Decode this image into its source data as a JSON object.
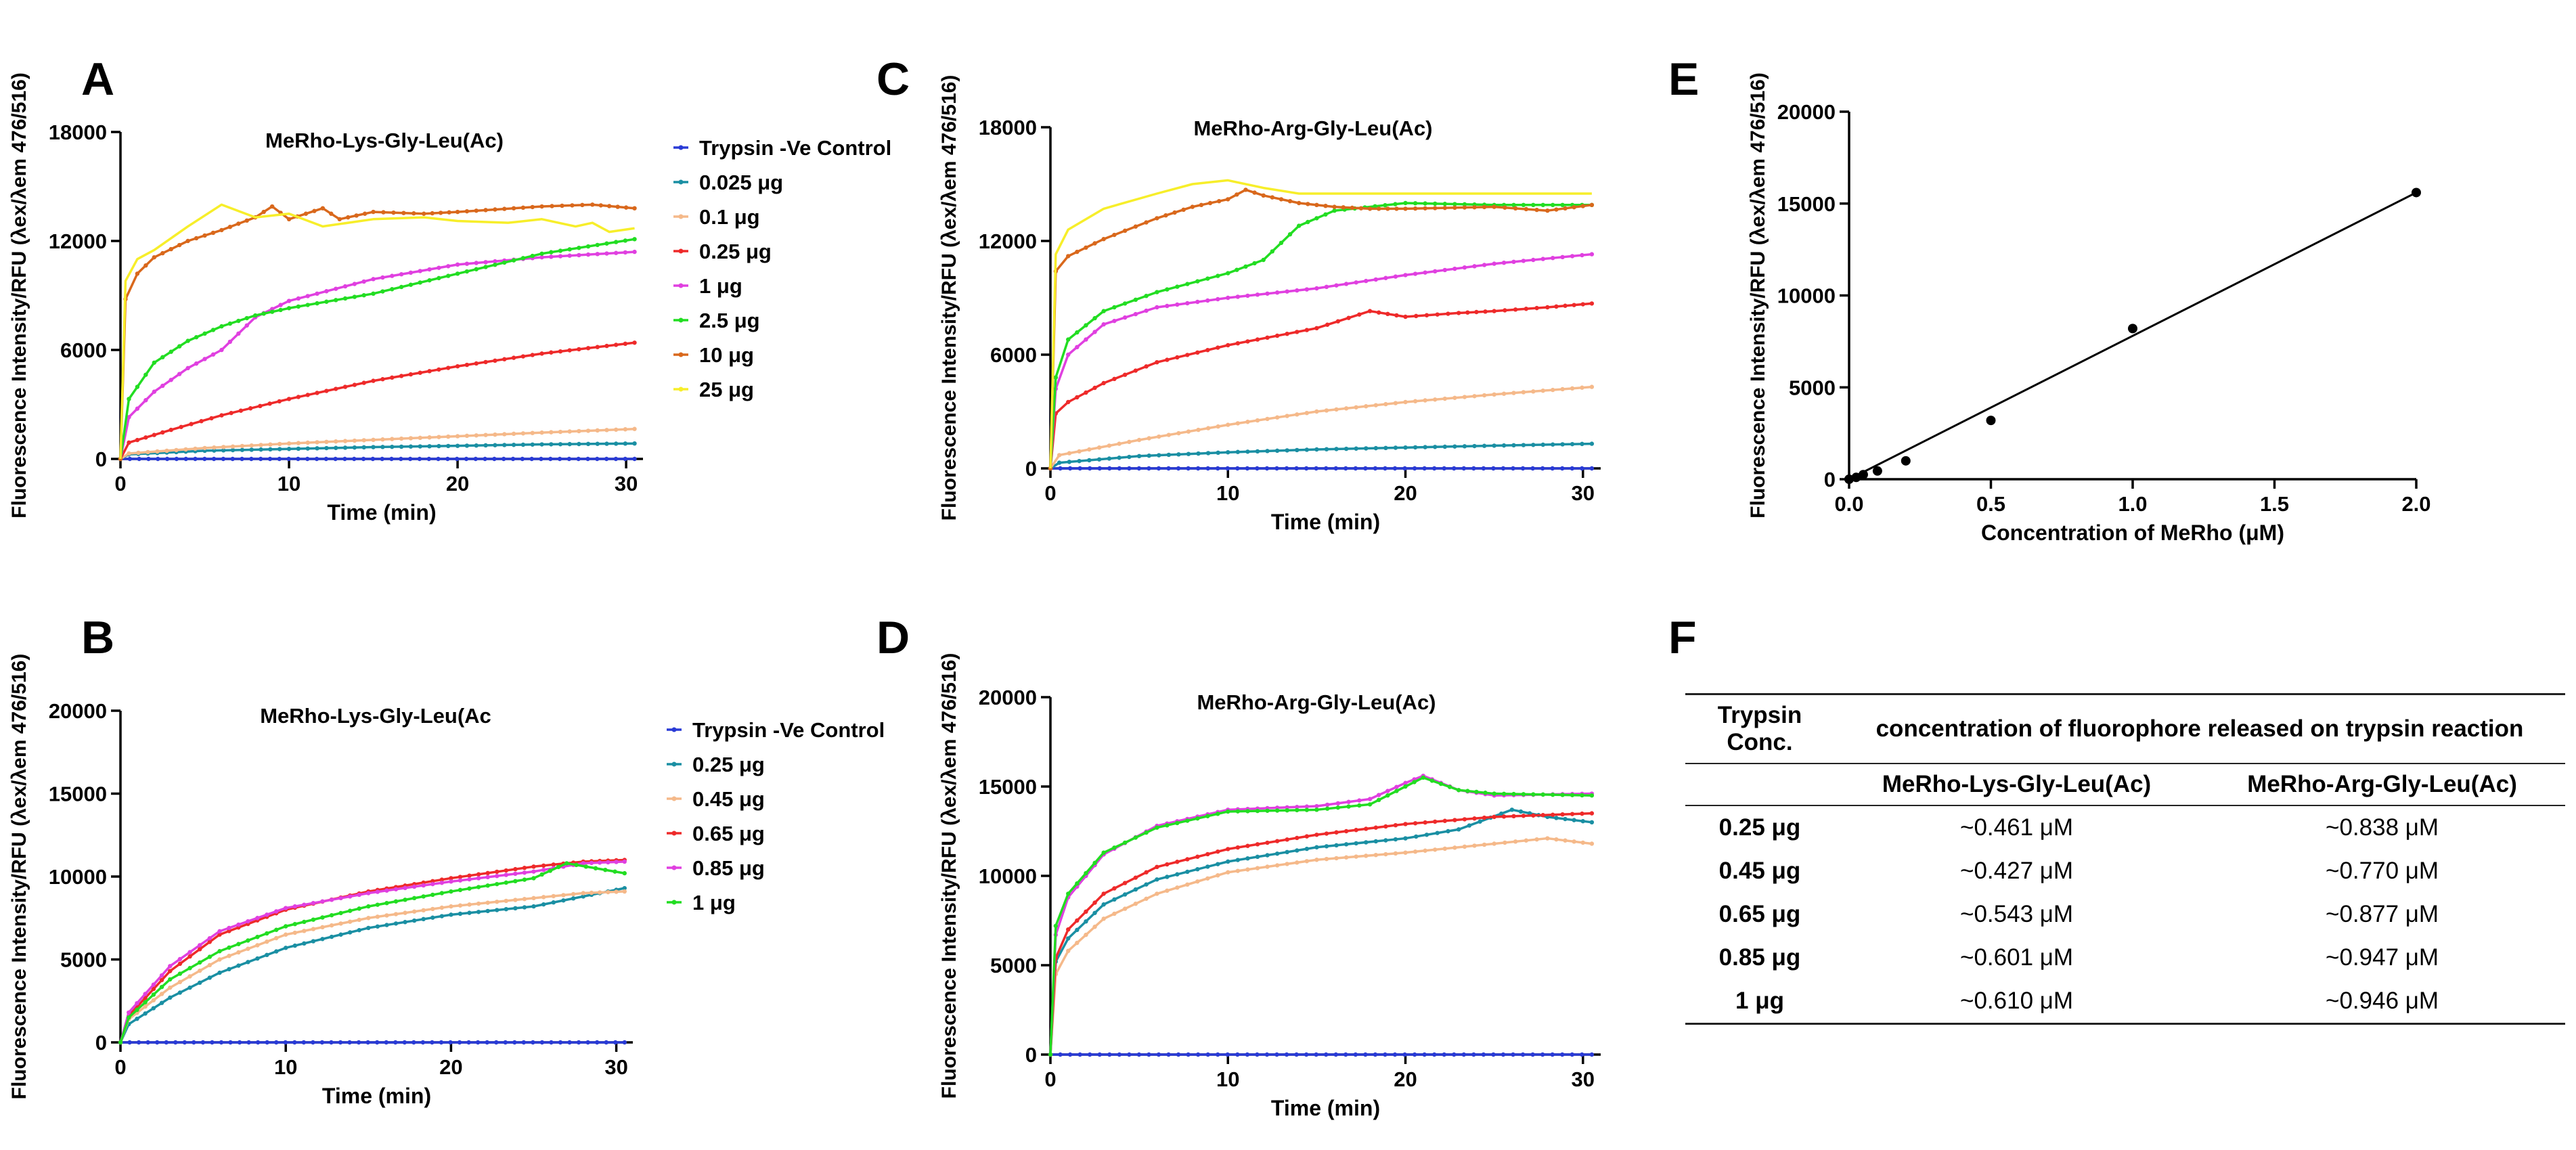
{
  "chart_data": [
    {
      "panel": "A",
      "type": "line",
      "title": "MeRho-Lys-Gly-Leu(Ac)",
      "xlabel": "Time (min)",
      "ylabel": "Fluorescence Intensity/RFU (λex/λem 476/516)",
      "xlim": [
        0,
        31
      ],
      "ylim": [
        0,
        18000
      ],
      "xticks": [
        0,
        10,
        20,
        30
      ],
      "xtick_labels": [
        "0",
        "10",
        "20",
        "30"
      ],
      "yticks": [
        0,
        6000,
        12000,
        18000
      ],
      "ytick_labels": [
        "0",
        "6000",
        "12000",
        "18000"
      ],
      "series": [
        {
          "name": "Trypsin -Ve Control",
          "color": "#2a3bd6",
          "marker": true,
          "x": [
            0,
            30.5
          ],
          "y": [
            0,
            0
          ]
        },
        {
          "name": "0.025  μg",
          "color": "#1a8fa3",
          "marker": true,
          "x": [
            0,
            0.5,
            5,
            10,
            15,
            20,
            25,
            30.5
          ],
          "y": [
            0,
            250,
            450,
            550,
            650,
            720,
            800,
            850
          ]
        },
        {
          "name": "0.1 μg",
          "color": "#f5b98a",
          "marker": true,
          "x": [
            0,
            0.5,
            5,
            10,
            15,
            20,
            25,
            30.5
          ],
          "y": [
            0,
            300,
            600,
            850,
            1050,
            1250,
            1450,
            1650
          ]
        },
        {
          "name": "0.25 μg",
          "color": "#ee2a2a",
          "marker": true,
          "x": [
            0,
            0.5,
            3,
            6,
            10,
            15,
            20,
            25,
            30.5
          ],
          "y": [
            0,
            900,
            1600,
            2400,
            3300,
            4300,
            5100,
            5800,
            6400
          ]
        },
        {
          "name": "1 μg",
          "color": "#e040e0",
          "marker": true,
          "x": [
            0,
            0.5,
            2,
            4,
            6,
            8,
            10,
            15,
            20,
            25,
            30.5
          ],
          "y": [
            0,
            2300,
            3700,
            5000,
            6000,
            7800,
            8700,
            9900,
            10700,
            11100,
            11400
          ]
        },
        {
          "name": "2.5 μg",
          "color": "#22dd22",
          "marker": true,
          "x": [
            0,
            0.5,
            2,
            4,
            6,
            8,
            10,
            15,
            20,
            25,
            30.5
          ],
          "y": [
            0,
            3300,
            5300,
            6500,
            7300,
            7900,
            8300,
            9100,
            10200,
            11300,
            12100
          ]
        },
        {
          "name": "10 μg",
          "color": "#d9681c",
          "marker": true,
          "x": [
            0,
            0.3,
            1,
            2,
            4,
            6,
            8,
            9,
            10,
            12,
            13,
            15,
            18,
            20,
            25,
            28,
            30.5
          ],
          "y": [
            0,
            8800,
            10200,
            11100,
            12000,
            12600,
            13300,
            13900,
            13200,
            13800,
            13200,
            13600,
            13500,
            13600,
            13900,
            14000,
            13800
          ]
        },
        {
          "name": "25 μg",
          "color": "#f7ee2a",
          "marker": false,
          "x": [
            0,
            0.3,
            1,
            2,
            4,
            6,
            8,
            10,
            12,
            15,
            18,
            20,
            23,
            25,
            27,
            28,
            29,
            30.5
          ],
          "y": [
            0,
            9800,
            11000,
            11500,
            12800,
            14000,
            13300,
            13500,
            12800,
            13200,
            13300,
            13100,
            13000,
            13200,
            12800,
            13000,
            12500,
            12700
          ]
        }
      ]
    },
    {
      "panel": "B",
      "type": "line",
      "title": "MeRho-Lys-Gly-Leu(Ac",
      "xlabel": "Time (min)",
      "ylabel": "Fluorescence Intensity/RFU (λex/λem 476/516)",
      "xlim": [
        0,
        31
      ],
      "ylim": [
        0,
        20000
      ],
      "xticks": [
        0,
        10,
        20,
        30
      ],
      "xtick_labels": [
        "0",
        "10",
        "20",
        "30"
      ],
      "yticks": [
        0,
        5000,
        10000,
        15000,
        20000
      ],
      "ytick_labels": [
        "0",
        "5000",
        "10000",
        "15000",
        "20000"
      ],
      "series": [
        {
          "name": "Trypsin -Ve Control",
          "color": "#2a3bd6",
          "marker": true,
          "x": [
            0,
            30.5
          ],
          "y": [
            0,
            0
          ]
        },
        {
          "name": "0.25  μg",
          "color": "#1a8fa3",
          "marker": true,
          "x": [
            0,
            0.5,
            3,
            6,
            10,
            15,
            20,
            25,
            28,
            30.5
          ],
          "y": [
            0,
            1100,
            2700,
            4200,
            5700,
            6900,
            7700,
            8200,
            8800,
            9300
          ]
        },
        {
          "name": "0.45 μg",
          "color": "#f5b98a",
          "marker": true,
          "x": [
            0,
            0.5,
            3,
            6,
            10,
            15,
            20,
            25,
            28,
            30.5
          ],
          "y": [
            0,
            1400,
            3300,
            5000,
            6500,
            7500,
            8200,
            8700,
            9000,
            9100
          ]
        },
        {
          "name": "0.65 μg",
          "color": "#ee2a2a",
          "marker": true,
          "x": [
            0,
            0.5,
            3,
            6,
            10,
            15,
            20,
            25,
            28,
            30.5
          ],
          "y": [
            0,
            1600,
            4300,
            6500,
            8000,
            9100,
            9900,
            10600,
            10900,
            11000
          ]
        },
        {
          "name": "0.85 μg",
          "color": "#e040e0",
          "marker": true,
          "x": [
            0,
            0.5,
            3,
            6,
            10,
            15,
            20,
            25,
            28,
            30.5
          ],
          "y": [
            0,
            1800,
            4600,
            6700,
            8100,
            9000,
            9700,
            10300,
            10800,
            10900
          ]
        },
        {
          "name": "1 μg",
          "color": "#22dd22",
          "marker": true,
          "x": [
            0,
            0.5,
            3,
            6,
            10,
            15,
            20,
            25,
            27,
            30.5
          ],
          "y": [
            0,
            1500,
            3800,
            5500,
            7000,
            8200,
            9100,
            9900,
            10800,
            10200
          ]
        }
      ]
    },
    {
      "panel": "C",
      "type": "line",
      "title": "MeRho-Arg-Gly-Leu(Ac)",
      "xlabel": "Time (min)",
      "ylabel": "Fluorescence Intensity/RFU (λex/λem 476/516)",
      "xlim": [
        0,
        31
      ],
      "ylim": [
        0,
        18000
      ],
      "xticks": [
        0,
        10,
        20,
        30
      ],
      "xtick_labels": [
        "0",
        "10",
        "20",
        "30"
      ],
      "yticks": [
        0,
        6000,
        12000,
        18000
      ],
      "ytick_labels": [
        "0",
        "6000",
        "12000",
        "18000"
      ],
      "series": [
        {
          "name": "Trypsin -Ve Control",
          "color": "#2a3bd6",
          "marker": true,
          "x": [
            0,
            30.5
          ],
          "y": [
            0,
            0
          ]
        },
        {
          "name": "0.025 μg",
          "color": "#1a8fa3",
          "marker": true,
          "x": [
            0,
            0.5,
            5,
            10,
            15,
            20,
            25,
            30.5
          ],
          "y": [
            0,
            300,
            650,
            850,
            1000,
            1100,
            1200,
            1300
          ]
        },
        {
          "name": "0.1 μg",
          "color": "#f5b98a",
          "marker": true,
          "x": [
            0,
            0.5,
            5,
            10,
            15,
            20,
            25,
            30.5
          ],
          "y": [
            0,
            700,
            1500,
            2300,
            3000,
            3500,
            3900,
            4300
          ]
        },
        {
          "name": "0.25 μg",
          "color": "#ee2a2a",
          "marker": true,
          "x": [
            0,
            0.3,
            1,
            3,
            6,
            10,
            15,
            18,
            20,
            23,
            25,
            28,
            30.5
          ],
          "y": [
            0,
            2900,
            3500,
            4500,
            5600,
            6500,
            7400,
            8300,
            8000,
            8200,
            8300,
            8500,
            8700
          ]
        },
        {
          "name": "1 μg",
          "color": "#e040e0",
          "marker": true,
          "x": [
            0,
            0.3,
            1,
            3,
            6,
            10,
            15,
            20,
            25,
            30.5
          ],
          "y": [
            0,
            4200,
            6000,
            7600,
            8500,
            9000,
            9500,
            10200,
            10800,
            11300
          ]
        },
        {
          "name": "2.5 μg",
          "color": "#22dd22",
          "marker": true,
          "x": [
            0,
            0.3,
            1,
            3,
            6,
            10,
            12,
            14,
            16,
            20,
            25,
            30.5
          ],
          "y": [
            0,
            4800,
            6800,
            8300,
            9300,
            10300,
            11000,
            12800,
            13600,
            14000,
            13900,
            13900
          ]
        },
        {
          "name": "10 μg",
          "color": "#d9681c",
          "marker": true,
          "x": [
            0,
            0.3,
            1,
            3,
            6,
            8,
            10,
            11,
            12,
            14,
            16,
            18,
            20,
            25,
            28,
            30.5
          ],
          "y": [
            0,
            10400,
            11200,
            12100,
            13200,
            13800,
            14200,
            14700,
            14400,
            14000,
            13800,
            13700,
            13700,
            13800,
            13600,
            13900
          ]
        },
        {
          "name": "25 μg",
          "color": "#f7ee2a",
          "marker": false,
          "x": [
            0,
            0.3,
            1,
            3,
            6,
            8,
            10,
            12,
            14,
            18,
            25,
            30.5
          ],
          "y": [
            0,
            11300,
            12600,
            13700,
            14500,
            15000,
            15200,
            14800,
            14500,
            14500,
            14500,
            14500
          ]
        }
      ]
    },
    {
      "panel": "D",
      "type": "line",
      "title": "MeRho-Arg-Gly-Leu(Ac)",
      "xlabel": "Time (min)",
      "ylabel": "Fluorescence Intensity/RFU (λex/λem 476/516)",
      "xlim": [
        0,
        31
      ],
      "ylim": [
        0,
        20000
      ],
      "xticks": [
        0,
        10,
        20,
        30
      ],
      "xtick_labels": [
        "0",
        "10",
        "20",
        "30"
      ],
      "yticks": [
        0,
        5000,
        10000,
        15000,
        20000
      ],
      "ytick_labels": [
        "0",
        "5000",
        "10000",
        "15000",
        "20000"
      ],
      "series": [
        {
          "name": "Trypsin -Ve Control",
          "color": "#2a3bd6",
          "marker": true,
          "x": [
            0,
            30.5
          ],
          "y": [
            0,
            0
          ]
        },
        {
          "name": "0.25 μg",
          "color": "#1a8fa3",
          "marker": true,
          "x": [
            0,
            0.3,
            1,
            3,
            6,
            10,
            15,
            20,
            23,
            26,
            28,
            30.5
          ],
          "y": [
            0,
            5200,
            6500,
            8400,
            9800,
            10800,
            11600,
            12100,
            12600,
            13700,
            13300,
            13000
          ]
        },
        {
          "name": "0.45 μg",
          "color": "#f5b98a",
          "marker": true,
          "x": [
            0,
            0.3,
            1,
            3,
            6,
            10,
            15,
            20,
            25,
            28,
            30.5
          ],
          "y": [
            0,
            4500,
            5800,
            7600,
            9000,
            10200,
            10900,
            11300,
            11800,
            12100,
            11800
          ]
        },
        {
          "name": "0.65 μg",
          "color": "#ee2a2a",
          "marker": true,
          "x": [
            0,
            0.3,
            1,
            3,
            6,
            10,
            15,
            20,
            25,
            30.5
          ],
          "y": [
            0,
            5400,
            7000,
            9000,
            10500,
            11500,
            12300,
            12900,
            13300,
            13500
          ]
        },
        {
          "name": "0.85 μg",
          "color": "#e040e0",
          "marker": true,
          "x": [
            0,
            0.3,
            1,
            3,
            6,
            10,
            15,
            18,
            20,
            21,
            23,
            25,
            30.5
          ],
          "y": [
            0,
            6700,
            8800,
            11200,
            12800,
            13700,
            13900,
            14300,
            15200,
            15600,
            14800,
            14500,
            14600
          ]
        },
        {
          "name": "1 μg",
          "color": "#22dd22",
          "marker": true,
          "x": [
            0,
            0.3,
            1,
            3,
            6,
            10,
            15,
            18,
            20,
            21,
            23,
            25,
            30.5
          ],
          "y": [
            0,
            7200,
            9000,
            11300,
            12700,
            13600,
            13700,
            14000,
            15000,
            15500,
            14800,
            14600,
            14500
          ]
        }
      ]
    },
    {
      "panel": "E",
      "type": "scatter",
      "title": "",
      "xlabel": "Concentration of MeRho (μM)",
      "ylabel": "Fluorescence Intensity/RFU (λex/λem 476/516)",
      "xlim": [
        0,
        2.0
      ],
      "ylim": [
        0,
        20000
      ],
      "xticks": [
        0,
        0.5,
        1.0,
        1.5,
        2.0
      ],
      "xtick_labels": [
        "0.0",
        "0.5",
        "1.0",
        "1.5",
        "2.0"
      ],
      "yticks": [
        0,
        5000,
        10000,
        15000,
        20000
      ],
      "ytick_labels": [
        "0",
        "5000",
        "10000",
        "15000",
        "20000"
      ],
      "points": {
        "x": [
          0,
          0.025,
          0.05,
          0.1,
          0.2,
          0.5,
          1.0,
          2.0
        ],
        "y": [
          0,
          100,
          250,
          450,
          1000,
          3200,
          8200,
          15600
        ]
      },
      "fit": {
        "x": [
          0,
          2.0
        ],
        "y": [
          -150,
          15600
        ]
      }
    },
    {
      "panel": "F",
      "type": "table",
      "header": {
        "row_label": "Trypsin Conc.",
        "group": "concentration of fluorophore released on trypsin reaction",
        "columns": [
          "MeRho-Lys-Gly-Leu(Ac)",
          "MeRho-Arg-Gly-Leu(Ac)"
        ]
      },
      "rows": [
        {
          "label": "0.25 μg",
          "values": [
            "~0.461 μM",
            "~0.838 μM"
          ]
        },
        {
          "label": "0.45 μg",
          "values": [
            "~0.427 μM",
            "~0.770 μM"
          ]
        },
        {
          "label": "0.65 μg",
          "values": [
            "~0.543 μM",
            "~0.877 μM"
          ]
        },
        {
          "label": "0.85 μg",
          "values": [
            "~0.601 μM",
            "~0.947 μM"
          ]
        },
        {
          "label": "1 μg",
          "values": [
            "~0.610 μM",
            "~0.946 μM"
          ]
        }
      ]
    }
  ]
}
